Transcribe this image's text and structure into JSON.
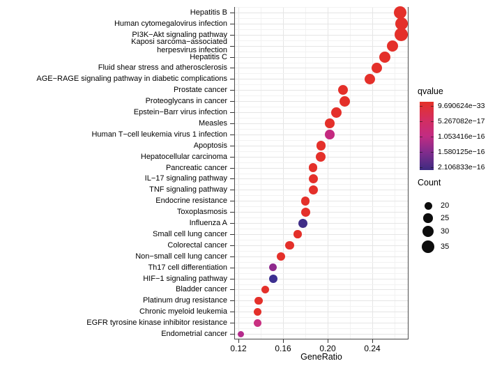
{
  "chart_data": {
    "type": "scatter",
    "title": "",
    "xlabel": "GeneRatio",
    "ylabel": "",
    "xlim": [
      0.11625,
      0.2725
    ],
    "x_ticks": [
      0.12,
      0.16,
      0.2,
      0.24
    ],
    "x_tick_labels": [
      "0.12",
      "0.16",
      "0.20",
      "0.24"
    ],
    "x_minor_ticks": [
      0.14,
      0.18,
      0.22,
      0.26
    ],
    "grid": "on",
    "legend_position": "right",
    "points": [
      {
        "pathway": "Hepatitis B",
        "gene_ratio": 0.265,
        "count": 35,
        "color": "#e4302a"
      },
      {
        "pathway": "Human cytomegalovirus infection",
        "gene_ratio": 0.266,
        "count": 34,
        "color": "#e4302a"
      },
      {
        "pathway": "PI3K−Akt signaling pathway",
        "gene_ratio": 0.266,
        "count": 36,
        "color": "#e4302a"
      },
      {
        "pathway": "Kaposi sarcoma−associated herpesvirus infection",
        "label_lines": [
          "Kaposi sarcoma−associated",
          "herpesvirus infection"
        ],
        "gene_ratio": 0.258,
        "count": 30,
        "color": "#e4302a"
      },
      {
        "pathway": "Hepatitis C",
        "gene_ratio": 0.251,
        "count": 30,
        "color": "#e4302a"
      },
      {
        "pathway": "Fluid shear stress and atherosclerosis",
        "gene_ratio": 0.244,
        "count": 29,
        "color": "#e4302a"
      },
      {
        "pathway": "AGE−RAGE signaling pathway in diabetic complications",
        "gene_ratio": 0.238,
        "count": 28,
        "color": "#e4302a"
      },
      {
        "pathway": "Prostate cancer",
        "gene_ratio": 0.214,
        "count": 26,
        "color": "#e4302a"
      },
      {
        "pathway": "Proteoglycans in cancer",
        "gene_ratio": 0.215,
        "count": 28,
        "color": "#e4302a"
      },
      {
        "pathway": "Epstein−Barr virus infection",
        "gene_ratio": 0.208,
        "count": 28,
        "color": "#e4302a"
      },
      {
        "pathway": "Measles",
        "gene_ratio": 0.202,
        "count": 25,
        "color": "#e4302a"
      },
      {
        "pathway": "Human T−cell leukemia virus 1 infection",
        "gene_ratio": 0.202,
        "count": 25,
        "color": "#c42a80"
      },
      {
        "pathway": "Apoptosis",
        "gene_ratio": 0.194,
        "count": 25,
        "color": "#e4302a"
      },
      {
        "pathway": "Hepatocellular carcinoma",
        "gene_ratio": 0.194,
        "count": 26,
        "color": "#e4302a"
      },
      {
        "pathway": "Pancreatic cancer",
        "gene_ratio": 0.187,
        "count": 23,
        "color": "#e4302a"
      },
      {
        "pathway": "IL−17 signaling pathway",
        "gene_ratio": 0.187,
        "count": 24,
        "color": "#e4302a"
      },
      {
        "pathway": "TNF signaling pathway",
        "gene_ratio": 0.187,
        "count": 24,
        "color": "#e4302a"
      },
      {
        "pathway": "Endocrine resistance",
        "gene_ratio": 0.18,
        "count": 23,
        "color": "#e4302a"
      },
      {
        "pathway": "Toxoplasmosis",
        "gene_ratio": 0.18,
        "count": 24,
        "color": "#e4302a"
      },
      {
        "pathway": "Influenza A",
        "gene_ratio": 0.178,
        "count": 24,
        "color": "#3f2d87"
      },
      {
        "pathway": "Small cell lung cancer",
        "gene_ratio": 0.173,
        "count": 21,
        "color": "#e4302a"
      },
      {
        "pathway": "Colorectal cancer",
        "gene_ratio": 0.166,
        "count": 23,
        "color": "#e4302a"
      },
      {
        "pathway": "Non−small cell lung cancer",
        "gene_ratio": 0.158,
        "count": 22,
        "color": "#e4302a"
      },
      {
        "pathway": "Th17 cell differentiation",
        "gene_ratio": 0.151,
        "count": 21,
        "color": "#8f2a8d"
      },
      {
        "pathway": "HIF−1 signaling pathway",
        "gene_ratio": 0.151,
        "count": 22,
        "color": "#3c2f90"
      },
      {
        "pathway": "Bladder cancer",
        "gene_ratio": 0.144,
        "count": 21,
        "color": "#e4302a"
      },
      {
        "pathway": "Platinum drug resistance",
        "gene_ratio": 0.138,
        "count": 21,
        "color": "#e4302a"
      },
      {
        "pathway": "Chronic myeloid leukemia",
        "gene_ratio": 0.137,
        "count": 20,
        "color": "#e4302a"
      },
      {
        "pathway": "EGFR tyrosine kinase inhibitor resistance",
        "gene_ratio": 0.137,
        "count": 20,
        "color": "#c93081"
      },
      {
        "pathway": "Endometrial cancer",
        "gene_ratio": 0.122,
        "count": 16,
        "color": "#b52b8c"
      }
    ],
    "color_legend": {
      "title": "qvalue",
      "tick_labels": [
        "9.690624e−33",
        "5.267082e−17",
        "1.053416e−16",
        "1.580125e−16",
        "2.106833e−16"
      ],
      "gradient_stops": [
        "#e43127",
        "#d42e5e",
        "#c22c82",
        "#7e2c8d",
        "#3d2b80"
      ]
    },
    "size_legend": {
      "title": "Count",
      "values": [
        20,
        25,
        30,
        35
      ]
    }
  }
}
